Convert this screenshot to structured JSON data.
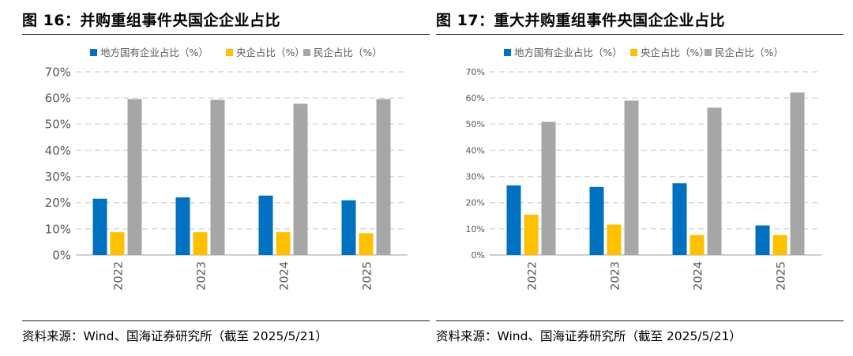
{
  "colors": {
    "local_soe": "#0070C0",
    "central_soe": "#FFC000",
    "private": "#A6A6A6",
    "grid": "#D9D9D9",
    "axis_text": "#595959"
  },
  "figures": [
    {
      "title": "图 16：并购重组事件央国企企业占比",
      "source": "资料来源：Wind、国海证券研究所（截至 2025/5/21）"
    },
    {
      "title": "图 17：重大并购重组事件央国企企业占比",
      "source": "资料来源：Wind、国海证券研究所（截至 2025/5/21）"
    }
  ],
  "chart_data": [
    {
      "type": "bar",
      "categories": [
        "2022",
        "2023",
        "2024",
        "2025"
      ],
      "series": [
        {
          "name": "地方国有企业占比（%）",
          "values": [
            21.5,
            22.0,
            22.7,
            20.9
          ]
        },
        {
          "name": "央企占比（%）",
          "values": [
            8.7,
            8.7,
            8.7,
            8.3
          ]
        },
        {
          "name": "民企占比（%）",
          "values": [
            59.6,
            59.3,
            57.8,
            59.6
          ]
        }
      ],
      "y_ticks": [
        "0%",
        "10%",
        "20%",
        "30%",
        "40%",
        "50%",
        "60%",
        "70%"
      ],
      "ylim": [
        0,
        70
      ],
      "grid": true,
      "legend_position": "top"
    },
    {
      "type": "bar",
      "categories": [
        "2022",
        "2023",
        "2024",
        "2025"
      ],
      "series": [
        {
          "name": "地方国有企业占比（%）",
          "values": [
            26.6,
            26.0,
            27.4,
            11.3
          ]
        },
        {
          "name": "央企占比（%）",
          "values": [
            15.4,
            11.6,
            7.6,
            7.6
          ]
        },
        {
          "name": "民企占比（%）",
          "values": [
            50.9,
            59.0,
            56.3,
            62.1
          ]
        }
      ],
      "y_ticks": [
        "0%",
        "10%",
        "20%",
        "30%",
        "40%",
        "50%",
        "60%",
        "70%"
      ],
      "ylim": [
        0,
        70
      ],
      "grid": true,
      "legend_position": "top"
    }
  ]
}
